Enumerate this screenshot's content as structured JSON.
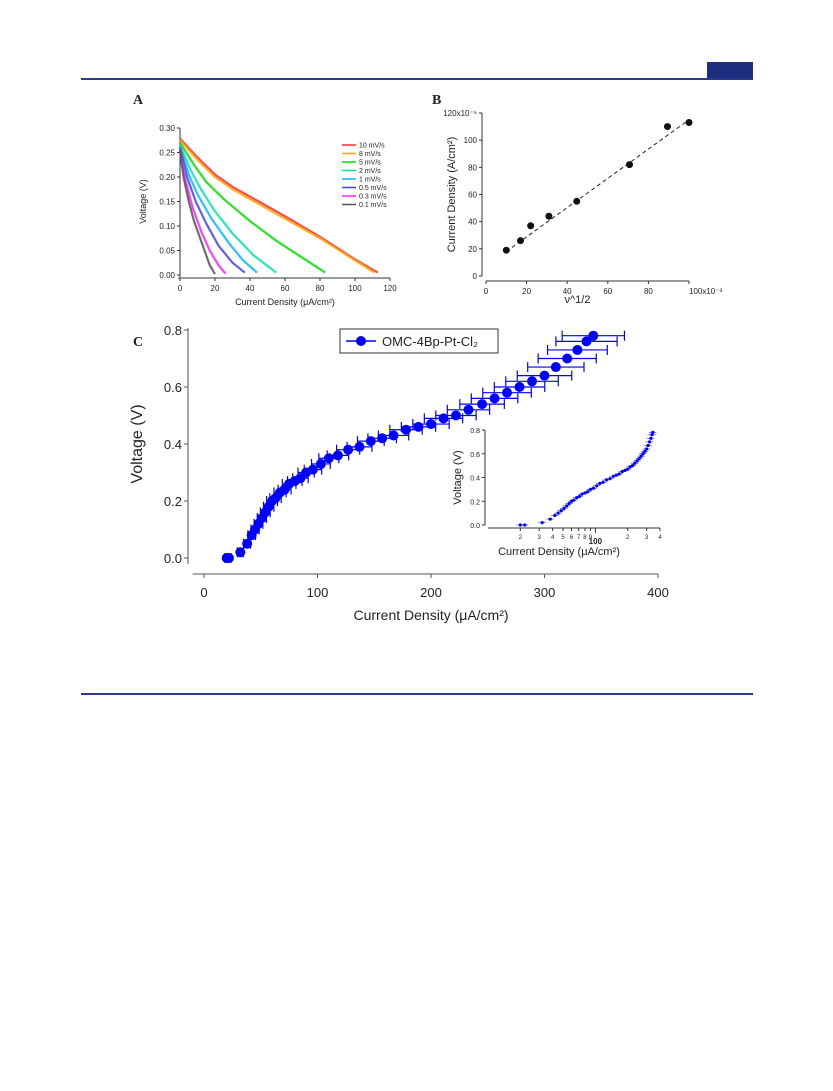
{
  "panels": {
    "a": "A",
    "b": "B",
    "c": "C"
  },
  "colors": {
    "rule": "#2b3a8f",
    "tab": "#1e2d7d",
    "blue": "#0000ff"
  },
  "chart_data": [
    {
      "id": "A",
      "type": "line",
      "xlabel": "Current Density (μA/cm²)",
      "ylabel": "Voltage (V)",
      "xlim": [
        0,
        120
      ],
      "ylim": [
        0,
        0.3
      ],
      "xticks": [
        "0",
        "20",
        "40",
        "60",
        "80",
        "100",
        "120"
      ],
      "yticks": [
        "0.00",
        "0.05",
        "0.10",
        "0.15",
        "0.20",
        "0.25",
        "0.30"
      ],
      "legend_position": "top-right",
      "series": [
        {
          "name": "10 mV/s",
          "color": "#ff2a2a",
          "x": [
            0,
            10,
            20,
            30,
            45,
            60,
            80,
            100,
            113
          ],
          "y": [
            0.278,
            0.24,
            0.205,
            0.18,
            0.15,
            0.12,
            0.078,
            0.032,
            0.005
          ]
        },
        {
          "name": "8 mV/s",
          "color": "#ffa500",
          "x": [
            0,
            10,
            20,
            30,
            45,
            60,
            80,
            100,
            111
          ],
          "y": [
            0.275,
            0.235,
            0.2,
            0.175,
            0.145,
            0.115,
            0.075,
            0.03,
            0.005
          ]
        },
        {
          "name": "5 mV/s",
          "color": "#00e000",
          "x": [
            0,
            8,
            15,
            25,
            40,
            55,
            70,
            83
          ],
          "y": [
            0.27,
            0.225,
            0.19,
            0.155,
            0.11,
            0.07,
            0.035,
            0.005
          ]
        },
        {
          "name": "2 mV/s",
          "color": "#00e8a0",
          "x": [
            0,
            6,
            12,
            20,
            30,
            42,
            55
          ],
          "y": [
            0.265,
            0.215,
            0.175,
            0.13,
            0.085,
            0.04,
            0.005
          ]
        },
        {
          "name": "1 mV/s",
          "color": "#00b8ff",
          "x": [
            0,
            5,
            10,
            18,
            28,
            36,
            44
          ],
          "y": [
            0.262,
            0.205,
            0.165,
            0.115,
            0.065,
            0.03,
            0.005
          ]
        },
        {
          "name": "0.5 mV/s",
          "color": "#4040ff",
          "x": [
            0,
            4,
            9,
            15,
            22,
            30,
            37
          ],
          "y": [
            0.26,
            0.2,
            0.15,
            0.105,
            0.06,
            0.025,
            0.005
          ]
        },
        {
          "name": "0.3 mV/s",
          "color": "#ff20ff",
          "x": [
            0,
            3,
            7,
            12,
            17,
            22,
            26
          ],
          "y": [
            0.258,
            0.195,
            0.14,
            0.09,
            0.05,
            0.02,
            0.003
          ]
        },
        {
          "name": "0.1 mV/s",
          "color": "#555555",
          "x": [
            0,
            2,
            5,
            8,
            11,
            14,
            17,
            20
          ],
          "y": [
            0.255,
            0.2,
            0.15,
            0.11,
            0.08,
            0.05,
            0.02,
            0.002
          ]
        }
      ]
    },
    {
      "id": "B",
      "type": "scatter",
      "xlabel": "ν^1/2",
      "ylabel": "Current Density (A/cm²)",
      "xlim": [
        0,
        100
      ],
      "ylim": [
        0,
        120
      ],
      "xticks": [
        "0",
        "20",
        "40",
        "60",
        "80",
        "100x10⁻³"
      ],
      "yticks": [
        "0",
        "20",
        "40",
        "60",
        "80",
        "100",
        "120x10⁻⁶"
      ],
      "points": {
        "x": [
          10,
          17,
          22,
          31,
          44.7,
          70.7,
          89.4,
          100
        ],
        "y": [
          19,
          26,
          37,
          44,
          55,
          82,
          110,
          113
        ]
      },
      "fit": {
        "x": [
          10,
          100
        ],
        "y": [
          18,
          115
        ]
      }
    },
    {
      "id": "C",
      "type": "scatter",
      "xlabel": "Current Density (μA/cm²)",
      "ylabel": "Voltage (V)",
      "xlim": [
        -10,
        400
      ],
      "ylim": [
        -0.02,
        0.82
      ],
      "xticks": [
        "0",
        "100",
        "200",
        "300",
        "400"
      ],
      "yticks": [
        "0.0",
        "0.2",
        "0.4",
        "0.6",
        "0.8"
      ],
      "legend": "OMC-4Bp-Pt-Cl₂",
      "legend_position": "top-center",
      "points": {
        "x": [
          20,
          22,
          32,
          38,
          42,
          45,
          48,
          51,
          54,
          57,
          60,
          63,
          67,
          71,
          75,
          80,
          85,
          90,
          96,
          103,
          110,
          118,
          127,
          137,
          147,
          157,
          167,
          178,
          189,
          200,
          211,
          222,
          233,
          245,
          256,
          267,
          278,
          289,
          300,
          310,
          320,
          329,
          337,
          343
        ],
        "y": [
          0.0,
          0.0,
          0.02,
          0.05,
          0.08,
          0.1,
          0.12,
          0.14,
          0.16,
          0.18,
          0.2,
          0.21,
          0.23,
          0.24,
          0.26,
          0.27,
          0.28,
          0.3,
          0.31,
          0.33,
          0.35,
          0.36,
          0.38,
          0.39,
          0.41,
          0.42,
          0.43,
          0.45,
          0.46,
          0.47,
          0.49,
          0.5,
          0.52,
          0.54,
          0.56,
          0.58,
          0.6,
          0.62,
          0.64,
          0.67,
          0.7,
          0.73,
          0.76,
          0.78
        ]
      },
      "xerr_frac": 0.08,
      "yerr": 0.012
    },
    {
      "id": "C-inset",
      "type": "scatter",
      "xlabel": "Current Density (μA/cm²)",
      "ylabel": "Voltage (V)",
      "xscale": "log",
      "xlim": [
        10,
        400
      ],
      "ylim": [
        0,
        0.8
      ],
      "xtick_values": [
        20,
        30,
        40,
        50,
        60,
        70,
        80,
        90,
        100,
        200,
        300,
        400
      ],
      "xticks": [
        "2",
        "3",
        "4",
        "5",
        "6",
        "7",
        "8",
        "9",
        "100",
        "2",
        "3",
        "4"
      ],
      "yticks": [
        "0.0",
        "0.2",
        "0.4",
        "0.6",
        "0.8"
      ],
      "source": "same as panel C"
    }
  ]
}
